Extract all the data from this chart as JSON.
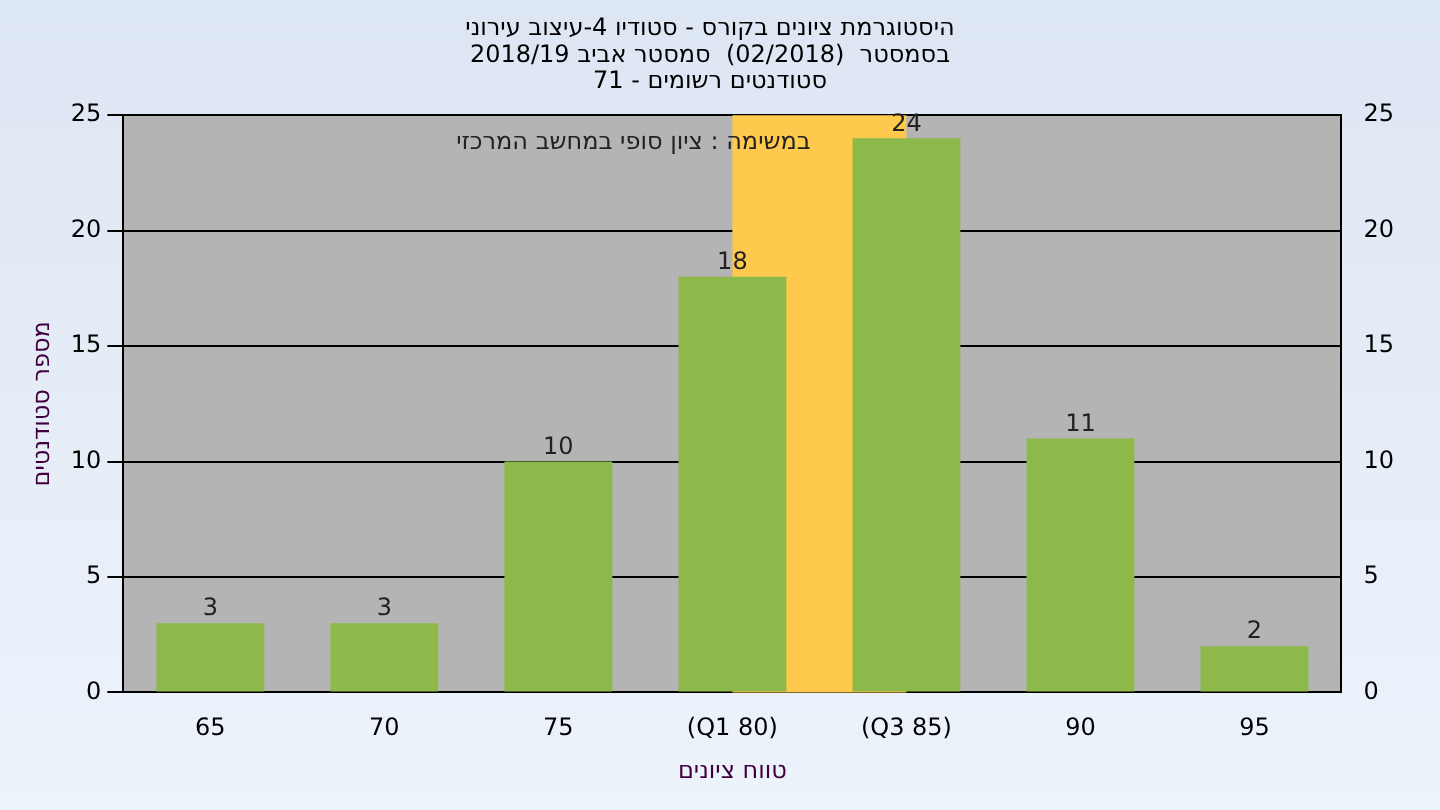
{
  "chart_data": {
    "type": "bar",
    "title": "היסטוגרמת ציונים בקורס - סטודיו 4-עיצוב עירוני\nבסמסטר  (02/2018)  סמסטר אביב 2018/19\nסטודנטים רשומים - 71",
    "xlabel": "טווח ציונים",
    "ylabel": "מספר סטודנטים",
    "categories": [
      "65",
      "70",
      "75",
      "(Q1 80)",
      "(Q3 85)",
      "90",
      "95"
    ],
    "values": [
      3,
      3,
      10,
      18,
      24,
      11,
      2
    ],
    "color": "#8db84a",
    "data_labels": true,
    "ylim": [
      0,
      25
    ],
    "yticks": [
      0,
      5,
      10,
      15,
      20,
      25
    ],
    "y2lim": [
      0,
      25
    ],
    "y2ticks": [
      0,
      5,
      10,
      15,
      20,
      25
    ],
    "grid": "y",
    "legend": false,
    "bands": [
      {
        "axis": "x",
        "from": "(Q1 80)",
        "to": "(Q3 85)",
        "color": "#ffc94d"
      }
    ],
    "annotations": [
      "במשימה : ציון סופי במחשב המרכזי"
    ]
  }
}
